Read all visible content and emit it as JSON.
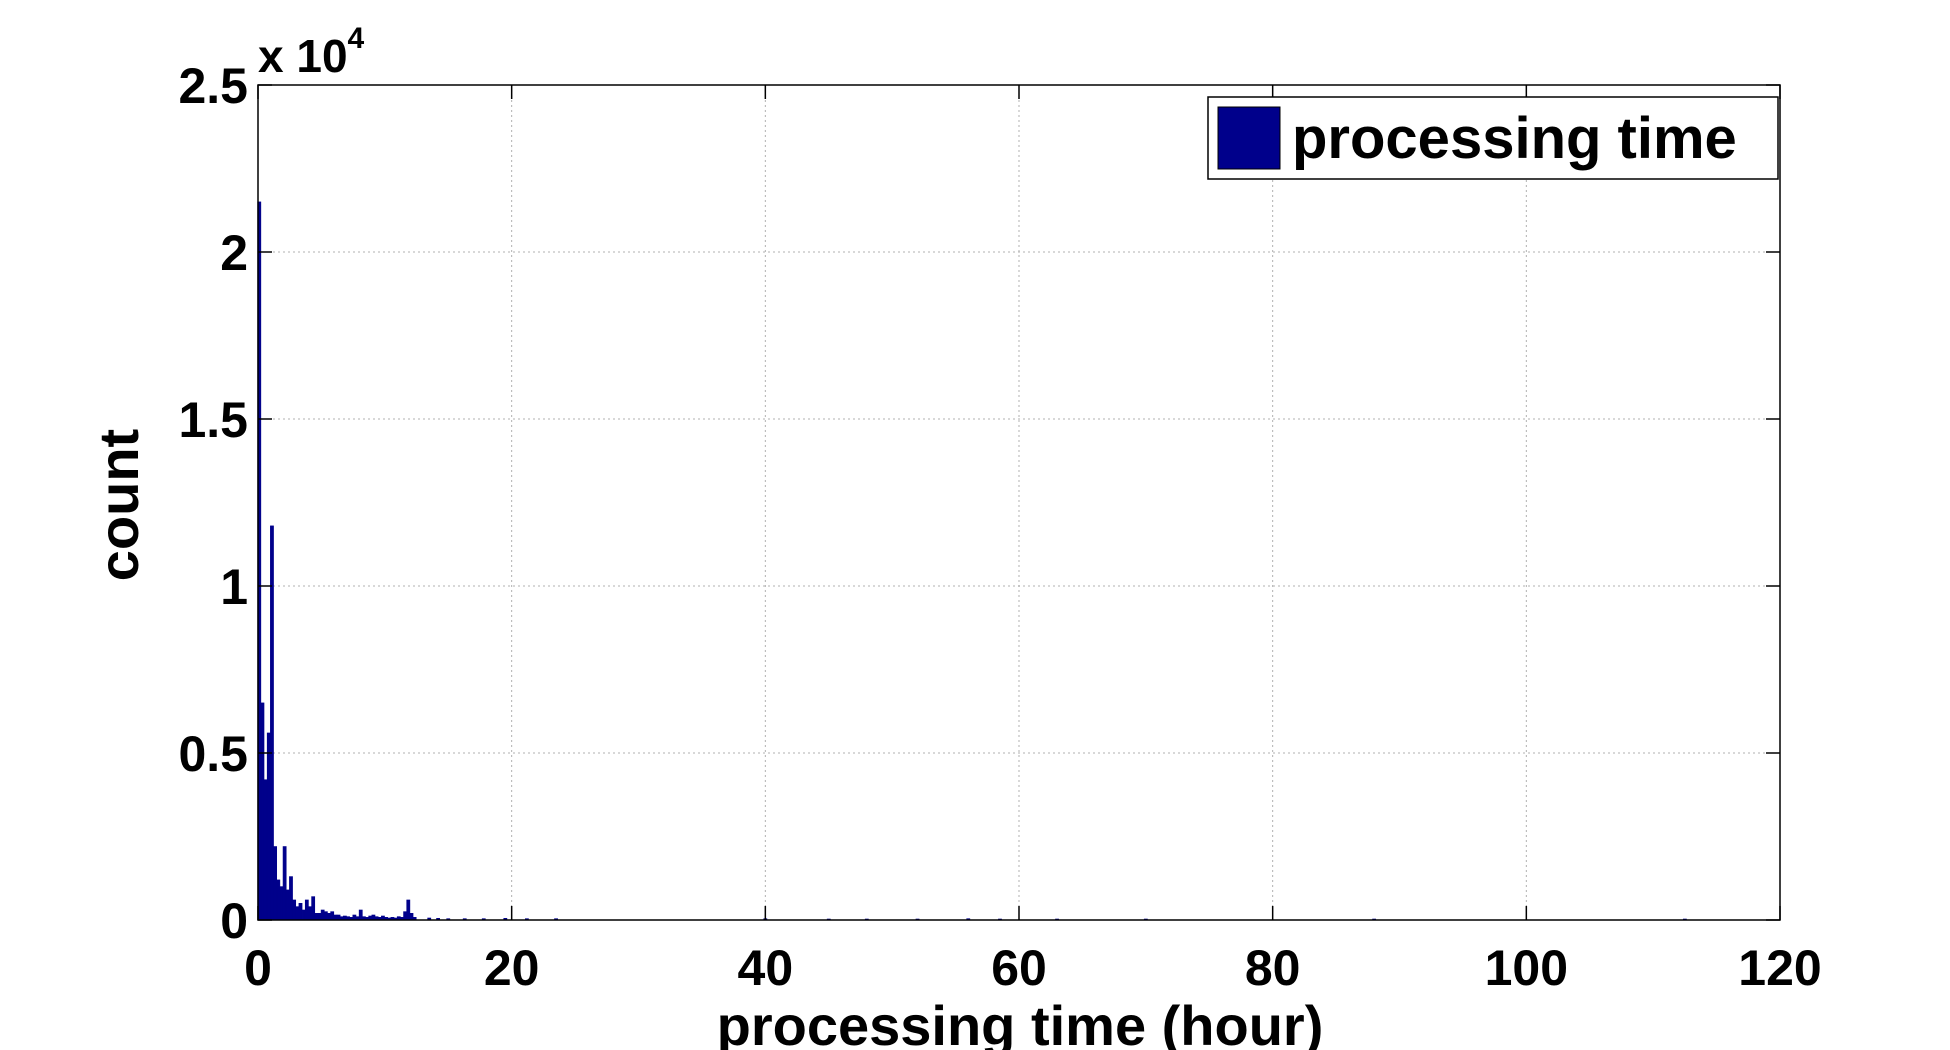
{
  "chart_data": {
    "type": "bar",
    "title": "",
    "xlabel": "processing time (hour)",
    "ylabel": "count",
    "y_multiplier_label": "x 10",
    "y_multiplier_exponent": "4",
    "xlim": [
      0,
      120
    ],
    "ylim": [
      0,
      2.5
    ],
    "x_ticks": [
      0,
      20,
      40,
      60,
      80,
      100,
      120
    ],
    "x_tick_labels": [
      "0",
      "20",
      "40",
      "60",
      "80",
      "100",
      "120"
    ],
    "y_ticks": [
      0,
      0.5,
      1,
      1.5,
      2,
      2.5
    ],
    "y_tick_labels": [
      "0",
      "0.5",
      "1",
      "1.5",
      "2",
      "2.5"
    ],
    "grid": true,
    "legend": {
      "entries": [
        "processing time"
      ],
      "position": "top-right"
    },
    "series": [
      {
        "name": "processing time",
        "color": "#00008b",
        "bar_width": 0.25,
        "x": [
          0.1,
          0.35,
          0.6,
          0.85,
          1.1,
          1.35,
          1.6,
          1.85,
          2.1,
          2.35,
          2.6,
          2.85,
          3.1,
          3.35,
          3.6,
          3.85,
          4.1,
          4.35,
          4.6,
          4.85,
          5.1,
          5.35,
          5.6,
          5.85,
          6.1,
          6.35,
          6.6,
          6.85,
          7.1,
          7.35,
          7.6,
          7.85,
          8.1,
          8.35,
          8.6,
          8.85,
          9.1,
          9.35,
          9.6,
          9.85,
          10.1,
          10.35,
          10.6,
          10.85,
          11.1,
          11.35,
          11.6,
          11.85,
          12.1,
          12.35,
          13.5,
          14.2,
          15.0,
          16.3,
          17.8,
          19.5,
          21.2,
          23.5,
          40.0,
          45.0,
          48.0,
          52.0,
          56.0,
          58.5,
          63.0,
          70.0,
          88.0,
          112.5
        ],
        "values": [
          2.15,
          0.65,
          0.42,
          0.56,
          1.18,
          0.22,
          0.12,
          0.1,
          0.22,
          0.09,
          0.13,
          0.06,
          0.04,
          0.05,
          0.03,
          0.06,
          0.04,
          0.07,
          0.02,
          0.02,
          0.03,
          0.025,
          0.02,
          0.025,
          0.015,
          0.015,
          0.01,
          0.012,
          0.01,
          0.008,
          0.015,
          0.01,
          0.03,
          0.01,
          0.008,
          0.012,
          0.015,
          0.01,
          0.008,
          0.012,
          0.008,
          0.006,
          0.008,
          0.006,
          0.01,
          0.008,
          0.025,
          0.06,
          0.02,
          0.008,
          0.006,
          0.005,
          0.004,
          0.004,
          0.004,
          0.005,
          0.004,
          0.004,
          0.004,
          0.003,
          0.003,
          0.003,
          0.004,
          0.003,
          0.003,
          0.003,
          0.003,
          0.003
        ]
      }
    ]
  }
}
